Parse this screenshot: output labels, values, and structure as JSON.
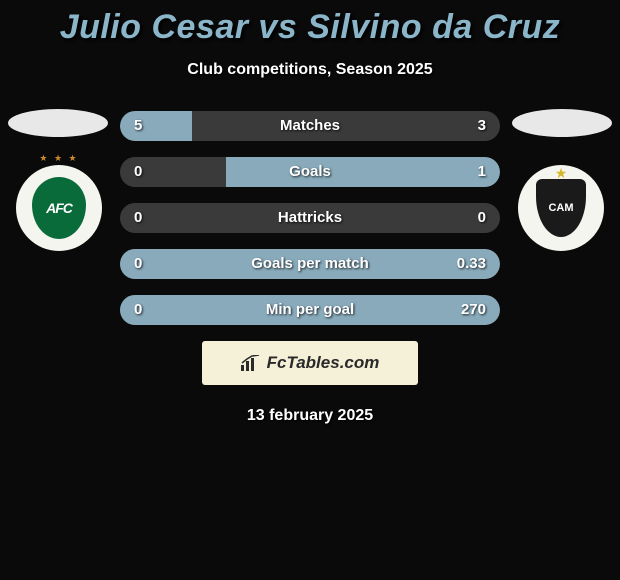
{
  "title": "Julio Cesar vs Silvino da Cruz",
  "subtitle": "Club competitions, Season 2025",
  "date": "13 february 2025",
  "brand": "FcTables.com",
  "colors": {
    "background": "#0a0a0a",
    "title_color": "#8bb5c9",
    "bar_fill": "#88aabb",
    "bar_empty": "#3a3a3a",
    "text": "#ffffff",
    "brand_box": "#f5f0d8",
    "club_left_primary": "#0a6b3a",
    "club_right_primary": "#1a1a1a"
  },
  "typography": {
    "title_fontsize": 34,
    "subtitle_fontsize": 16,
    "stat_label_fontsize": 15,
    "stat_value_fontsize": 15,
    "brand_fontsize": 17,
    "date_fontsize": 16
  },
  "stats": [
    {
      "label": "Matches",
      "left_val": "5",
      "right_val": "3",
      "left_pct": 19,
      "right_pct": 0
    },
    {
      "label": "Goals",
      "left_val": "0",
      "right_val": "1",
      "left_pct": 0,
      "right_pct": 72
    },
    {
      "label": "Hattricks",
      "left_val": "0",
      "right_val": "0",
      "left_pct": 0,
      "right_pct": 0
    },
    {
      "label": "Goals per match",
      "left_val": "0",
      "right_val": "0.33",
      "left_pct": 0,
      "right_pct": 100
    },
    {
      "label": "Min per goal",
      "left_val": "0",
      "right_val": "270",
      "left_pct": 0,
      "right_pct": 100
    }
  ],
  "clubs": {
    "left": {
      "short": "AFC",
      "badge_bg": "#f5f5f0"
    },
    "right": {
      "short": "CAM",
      "badge_bg": "#f5f5f0"
    }
  }
}
